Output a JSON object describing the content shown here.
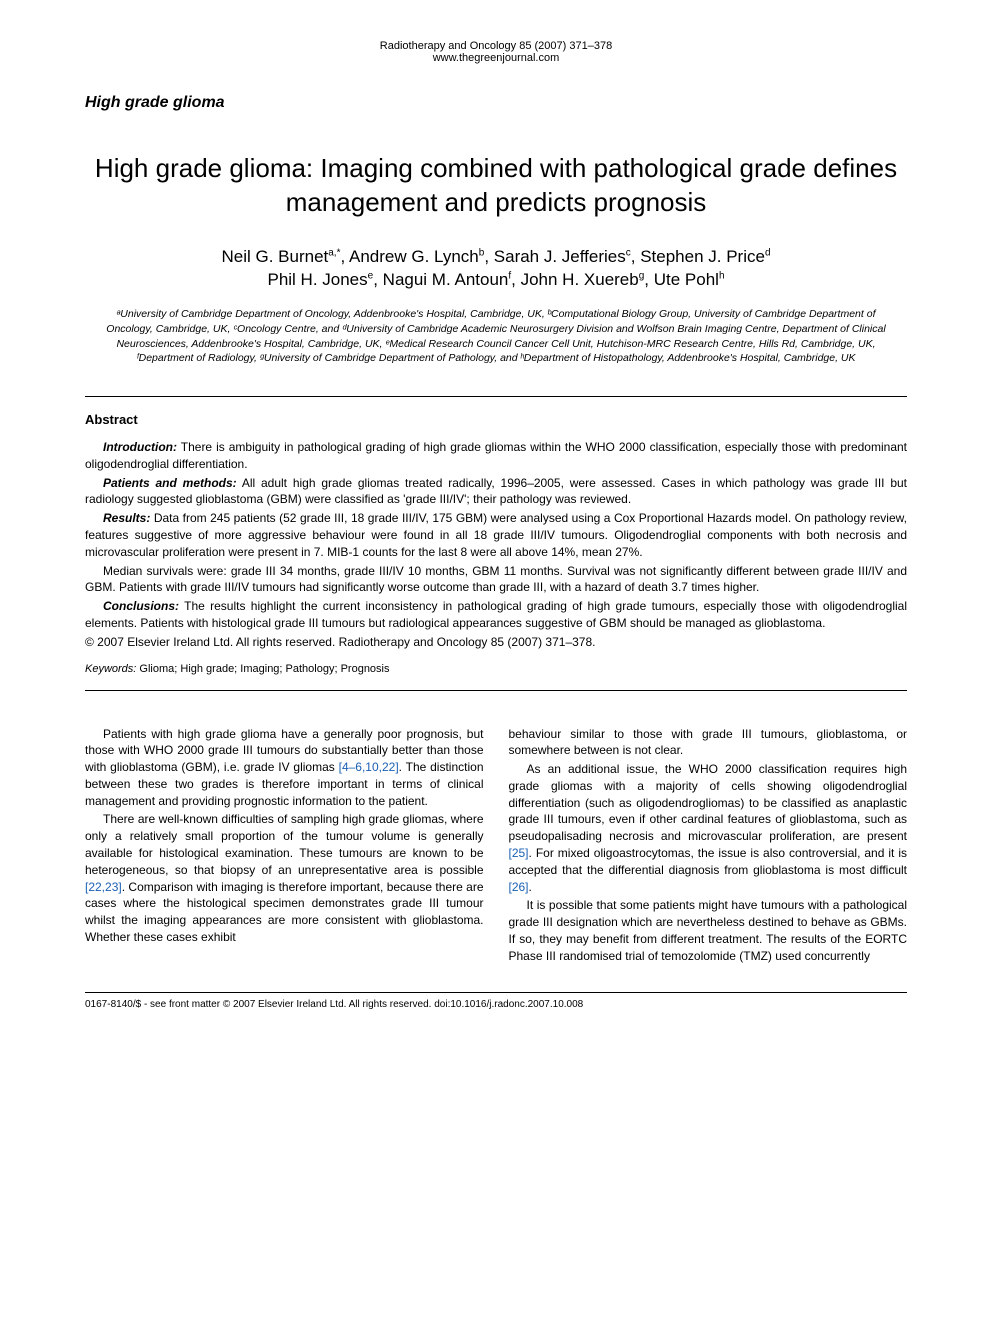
{
  "journal": {
    "citation": "Radiotherapy and Oncology 85 (2007) 371–378",
    "url": "www.thegreenjournal.com"
  },
  "category": "High grade glioma",
  "title": "High grade glioma: Imaging combined with pathological grade defines management and predicts prognosis",
  "authors_line1": "Neil G. Burnet",
  "authors_sup1": "a,*",
  "authors_line1b": ", Andrew G. Lynch",
  "authors_sup2": "b",
  "authors_line1c": ", Sarah J. Jefferies",
  "authors_sup3": "c",
  "authors_line1d": ", Stephen J. Price",
  "authors_sup4": "d",
  "authors_line2a": "Phil H. Jones",
  "authors_sup5": "e",
  "authors_line2b": ", Nagui M. Antoun",
  "authors_sup6": "f",
  "authors_line2c": ", John H. Xuereb",
  "authors_sup7": "g",
  "authors_line2d": ", Ute Pohl",
  "authors_sup8": "h",
  "affiliations": "ᵃUniversity of Cambridge Department of Oncology, Addenbrooke's Hospital, Cambridge, UK, ᵇComputational Biology Group, University of Cambridge Department of Oncology, Cambridge, UK, ᶜOncology Centre, and ᵈUniversity of Cambridge Academic Neurosurgery Division and Wolfson Brain Imaging Centre, Department of Clinical Neurosciences, Addenbrooke's Hospital, Cambridge, UK, ᵉMedical Research Council Cancer Cell Unit, Hutchison-MRC Research Centre, Hills Rd, Cambridge, UK, ᶠDepartment of Radiology, ᵍUniversity of Cambridge Department of Pathology, and ʰDepartment of Histopathology, Addenbrooke's Hospital, Cambridge, UK",
  "abstract": {
    "heading": "Abstract",
    "intro_label": "Introduction:",
    "intro": " There is ambiguity in pathological grading of high grade gliomas within the WHO 2000 classification, especially those with predominant oligodendroglial differentiation.",
    "methods_label": "Patients and methods:",
    "methods": " All adult high grade gliomas treated radically, 1996–2005, were assessed. Cases in which pathology was grade III but radiology suggested glioblastoma (GBM) were classified as 'grade III/IV'; their pathology was reviewed.",
    "results_label": "Results:",
    "results1": " Data from 245 patients (52 grade III, 18 grade III/IV, 175 GBM) were analysed using a Cox Proportional Hazards model. On pathology review, features suggestive of more aggressive behaviour were found in all 18 grade III/IV tumours. Oligodendroglial components with both necrosis and microvascular proliferation were present in 7. MIB-1 counts for the last 8 were all above 14%, mean 27%.",
    "results2": "Median survivals were: grade III 34 months, grade III/IV 10 months, GBM 11 months. Survival was not significantly different between grade III/IV and GBM. Patients with grade III/IV tumours had significantly worse outcome than grade III, with a hazard of death 3.7 times higher.",
    "conclusions_label": "Conclusions:",
    "conclusions": " The results highlight the current inconsistency in pathological grading of high grade tumours, especially those with oligodendroglial elements. Patients with histological grade III tumours but radiological appearances suggestive of GBM should be managed as glioblastoma.",
    "copyright": "© 2007 Elsevier Ireland Ltd. All rights reserved. Radiotherapy and Oncology 85 (2007) 371–378."
  },
  "keywords": {
    "label": "Keywords:",
    "text": " Glioma; High grade; Imaging; Pathology; Prognosis"
  },
  "body": {
    "col1_p1a": "Patients with high grade glioma have a generally poor prognosis, but those with WHO 2000 grade III tumours do substantially better than those with glioblastoma (GBM), i.e. grade IV gliomas ",
    "col1_p1_ref": "[4–6,10,22]",
    "col1_p1b": ". The distinction between these two grades is therefore important in terms of clinical management and providing prognostic information to the patient.",
    "col1_p2a": "There are well-known difficulties of sampling high grade gliomas, where only a relatively small proportion of the tumour volume is generally available for histological examination. These tumours are known to be heterogeneous, so that biopsy of an unrepresentative area is possible ",
    "col1_p2_ref": "[22,23]",
    "col1_p2b": ". Comparison with imaging is therefore important, because there are cases where the histological specimen demonstrates grade III tumour whilst the imaging appearances are more consistent with glioblastoma. Whether these cases exhibit",
    "col2_p1": "behaviour similar to those with grade III tumours, glioblastoma, or somewhere between is not clear.",
    "col2_p2a": "As an additional issue, the WHO 2000 classification requires high grade gliomas with a majority of cells showing oligodendroglial differentiation (such as oligodendrogliomas) to be classified as anaplastic grade III tumours, even if other cardinal features of glioblastoma, such as pseudopalisading necrosis and microvascular proliferation, are present ",
    "col2_p2_ref1": "[25]",
    "col2_p2b": ". For mixed oligoastrocytomas, the issue is also controversial, and it is accepted that the differential diagnosis from glioblastoma is most difficult ",
    "col2_p2_ref2": "[26]",
    "col2_p2c": ".",
    "col2_p3": "It is possible that some patients might have tumours with a pathological grade III designation which are nevertheless destined to behave as GBMs. If so, they may benefit from different treatment. The results of the EORTC Phase III randomised trial of temozolomide (TMZ) used concurrently"
  },
  "footer": "0167-8140/$ - see front matter © 2007 Elsevier Ireland Ltd. All rights reserved. doi:10.1016/j.radonc.2007.10.008",
  "colors": {
    "link": "#1a5fb4",
    "text": "#000000",
    "background": "#ffffff"
  }
}
